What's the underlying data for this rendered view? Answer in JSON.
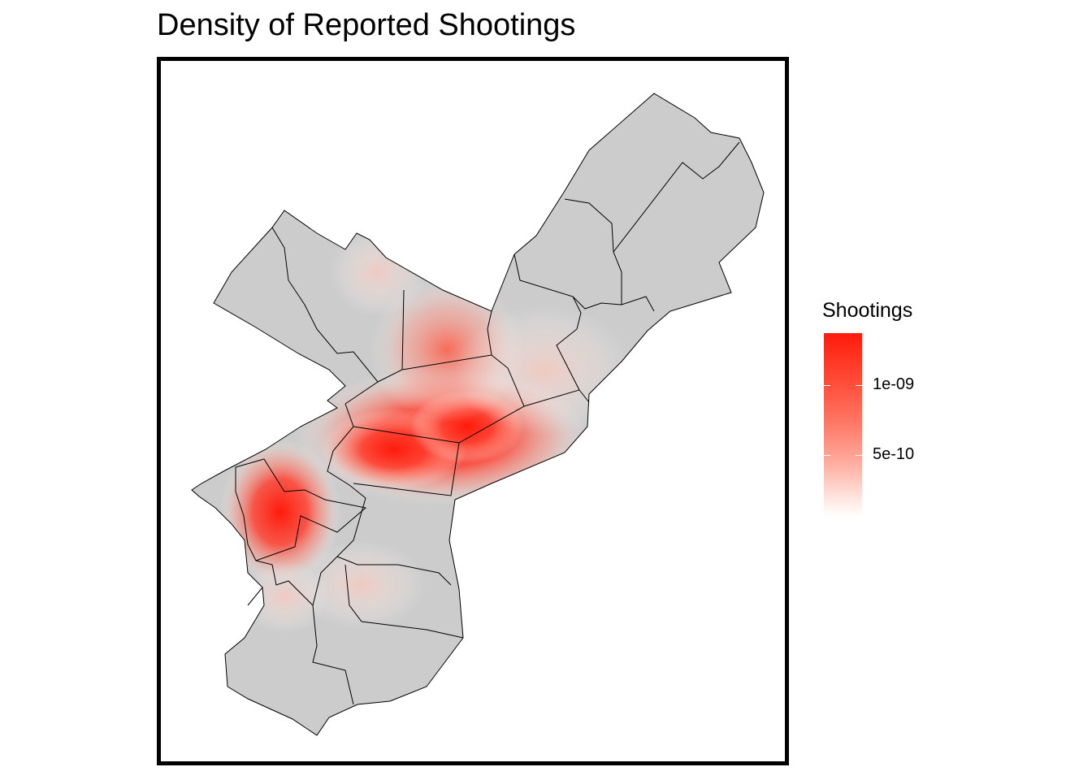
{
  "title": "Density of Reported Shootings",
  "legend": {
    "title": "Shootings",
    "ticks": [
      {
        "label": "1e-09",
        "value": 1e-09
      },
      {
        "label": "5e-10",
        "value": 5e-10
      }
    ],
    "colors": {
      "high": "#ff1a0a",
      "low": "#ffffff",
      "base_fill": "#cccccc"
    }
  },
  "map": {
    "region_fill": "#cccccc",
    "border_color": "#000000",
    "hotspots": [
      {
        "name": "north-central",
        "intensity": 0.95
      },
      {
        "name": "north-upper",
        "intensity": 0.75
      },
      {
        "name": "west",
        "intensity": 0.8
      },
      {
        "name": "near-northeast",
        "intensity": 0.35
      },
      {
        "name": "south",
        "intensity": 0.4
      }
    ]
  }
}
